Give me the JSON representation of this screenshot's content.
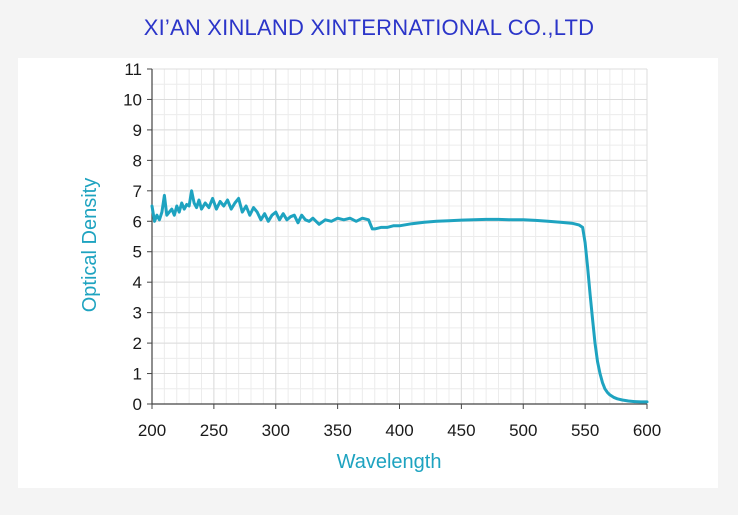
{
  "header": {
    "title": "XI’AN XINLAND XINTERNATIONAL CO.,LTD"
  },
  "colors": {
    "title": "#2b35c9",
    "line": "#1ea3c0",
    "axis_label": "#1ea3c0",
    "grid": "#dcdcdc"
  },
  "chart_data": {
    "type": "line",
    "title": "",
    "xlabel": "Wavelength",
    "ylabel": "Optical Density",
    "xlim": [
      200,
      600
    ],
    "ylim": [
      0,
      11
    ],
    "x_ticks": [
      200,
      250,
      300,
      350,
      400,
      450,
      500,
      550,
      600
    ],
    "y_ticks": [
      0,
      1,
      2,
      3,
      4,
      5,
      6,
      7,
      8,
      9,
      10,
      11
    ],
    "grid": true,
    "series": [
      {
        "name": "",
        "x": [
          200,
          202,
          204,
          206,
          208,
          210,
          212,
          214,
          216,
          218,
          220,
          222,
          224,
          226,
          228,
          230,
          232,
          234,
          236,
          238,
          240,
          243,
          246,
          249,
          252,
          255,
          258,
          261,
          264,
          267,
          270,
          273,
          276,
          279,
          282,
          285,
          288,
          291,
          294,
          297,
          300,
          303,
          306,
          309,
          312,
          315,
          318,
          321,
          324,
          327,
          330,
          335,
          340,
          345,
          350,
          355,
          360,
          365,
          370,
          375,
          378,
          380,
          385,
          390,
          395,
          400,
          410,
          420,
          430,
          440,
          450,
          460,
          470,
          480,
          490,
          500,
          510,
          520,
          530,
          540,
          545,
          548,
          550,
          552,
          554,
          556,
          558,
          560,
          562,
          564,
          566,
          568,
          570,
          573,
          576,
          580,
          585,
          590,
          595,
          600
        ],
        "y": [
          6.5,
          6.0,
          6.2,
          6.05,
          6.3,
          6.85,
          6.2,
          6.3,
          6.4,
          6.2,
          6.5,
          6.3,
          6.6,
          6.4,
          6.55,
          6.5,
          7.0,
          6.6,
          6.45,
          6.7,
          6.4,
          6.6,
          6.45,
          6.75,
          6.4,
          6.65,
          6.5,
          6.7,
          6.4,
          6.6,
          6.75,
          6.3,
          6.5,
          6.2,
          6.45,
          6.3,
          6.05,
          6.25,
          6.0,
          6.2,
          6.3,
          6.05,
          6.25,
          6.05,
          6.15,
          6.2,
          5.95,
          6.2,
          6.05,
          6.0,
          6.1,
          5.9,
          6.05,
          6.0,
          6.1,
          6.05,
          6.1,
          6.0,
          6.1,
          6.05,
          5.75,
          5.75,
          5.8,
          5.8,
          5.85,
          5.85,
          5.92,
          5.97,
          6.0,
          6.02,
          6.04,
          6.05,
          6.06,
          6.06,
          6.05,
          6.05,
          6.03,
          6.0,
          5.97,
          5.93,
          5.88,
          5.8,
          5.3,
          4.5,
          3.6,
          2.8,
          2.0,
          1.4,
          1.0,
          0.7,
          0.5,
          0.38,
          0.3,
          0.22,
          0.17,
          0.13,
          0.1,
          0.08,
          0.07,
          0.07
        ]
      }
    ]
  }
}
